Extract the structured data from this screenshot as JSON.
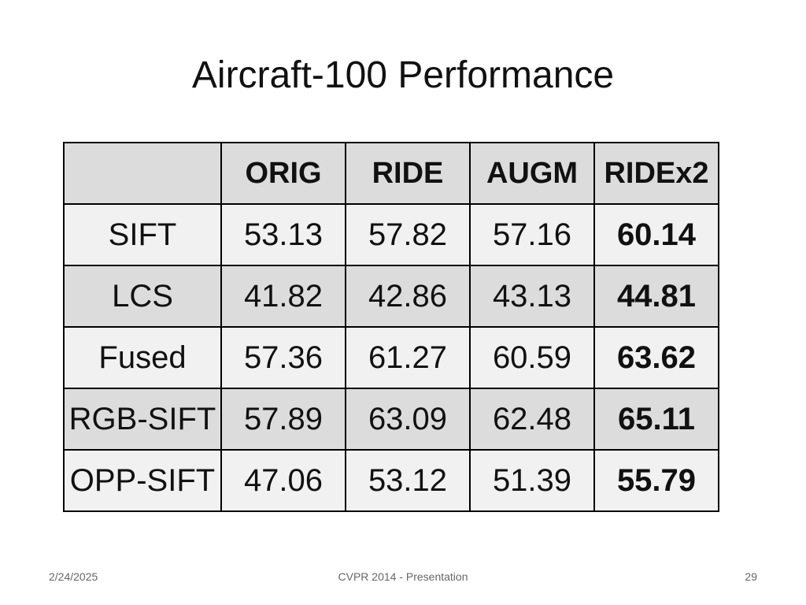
{
  "slide": {
    "title": "Aircraft-100 Performance",
    "footer_date": "2/24/2025",
    "footer_center": "CVPR 2014 - Presentation",
    "page_number": "29"
  },
  "table": {
    "headers": [
      "",
      "ORIG",
      "RIDE",
      "AUGM",
      "RIDEx2"
    ],
    "rows": [
      {
        "label": "SIFT",
        "values": [
          "53.13",
          "57.82",
          "57.16",
          "60.14"
        ]
      },
      {
        "label": "LCS",
        "values": [
          "41.82",
          "42.86",
          "43.13",
          "44.81"
        ]
      },
      {
        "label": "Fused",
        "values": [
          "57.36",
          "61.27",
          "60.59",
          "63.62"
        ]
      },
      {
        "label": "RGB-SIFT",
        "values": [
          "57.89",
          "63.09",
          "62.48",
          "65.11"
        ]
      },
      {
        "label": "OPP-SIFT",
        "values": [
          "47.06",
          "53.12",
          "51.39",
          "55.79"
        ]
      }
    ],
    "best_column": "RIDEx2"
  },
  "colors": {
    "header_fill": "#dcdcdc",
    "light_row_fill": "#f1f1f1",
    "dark_row_fill": "#dcdcdc",
    "border": "#000000"
  }
}
